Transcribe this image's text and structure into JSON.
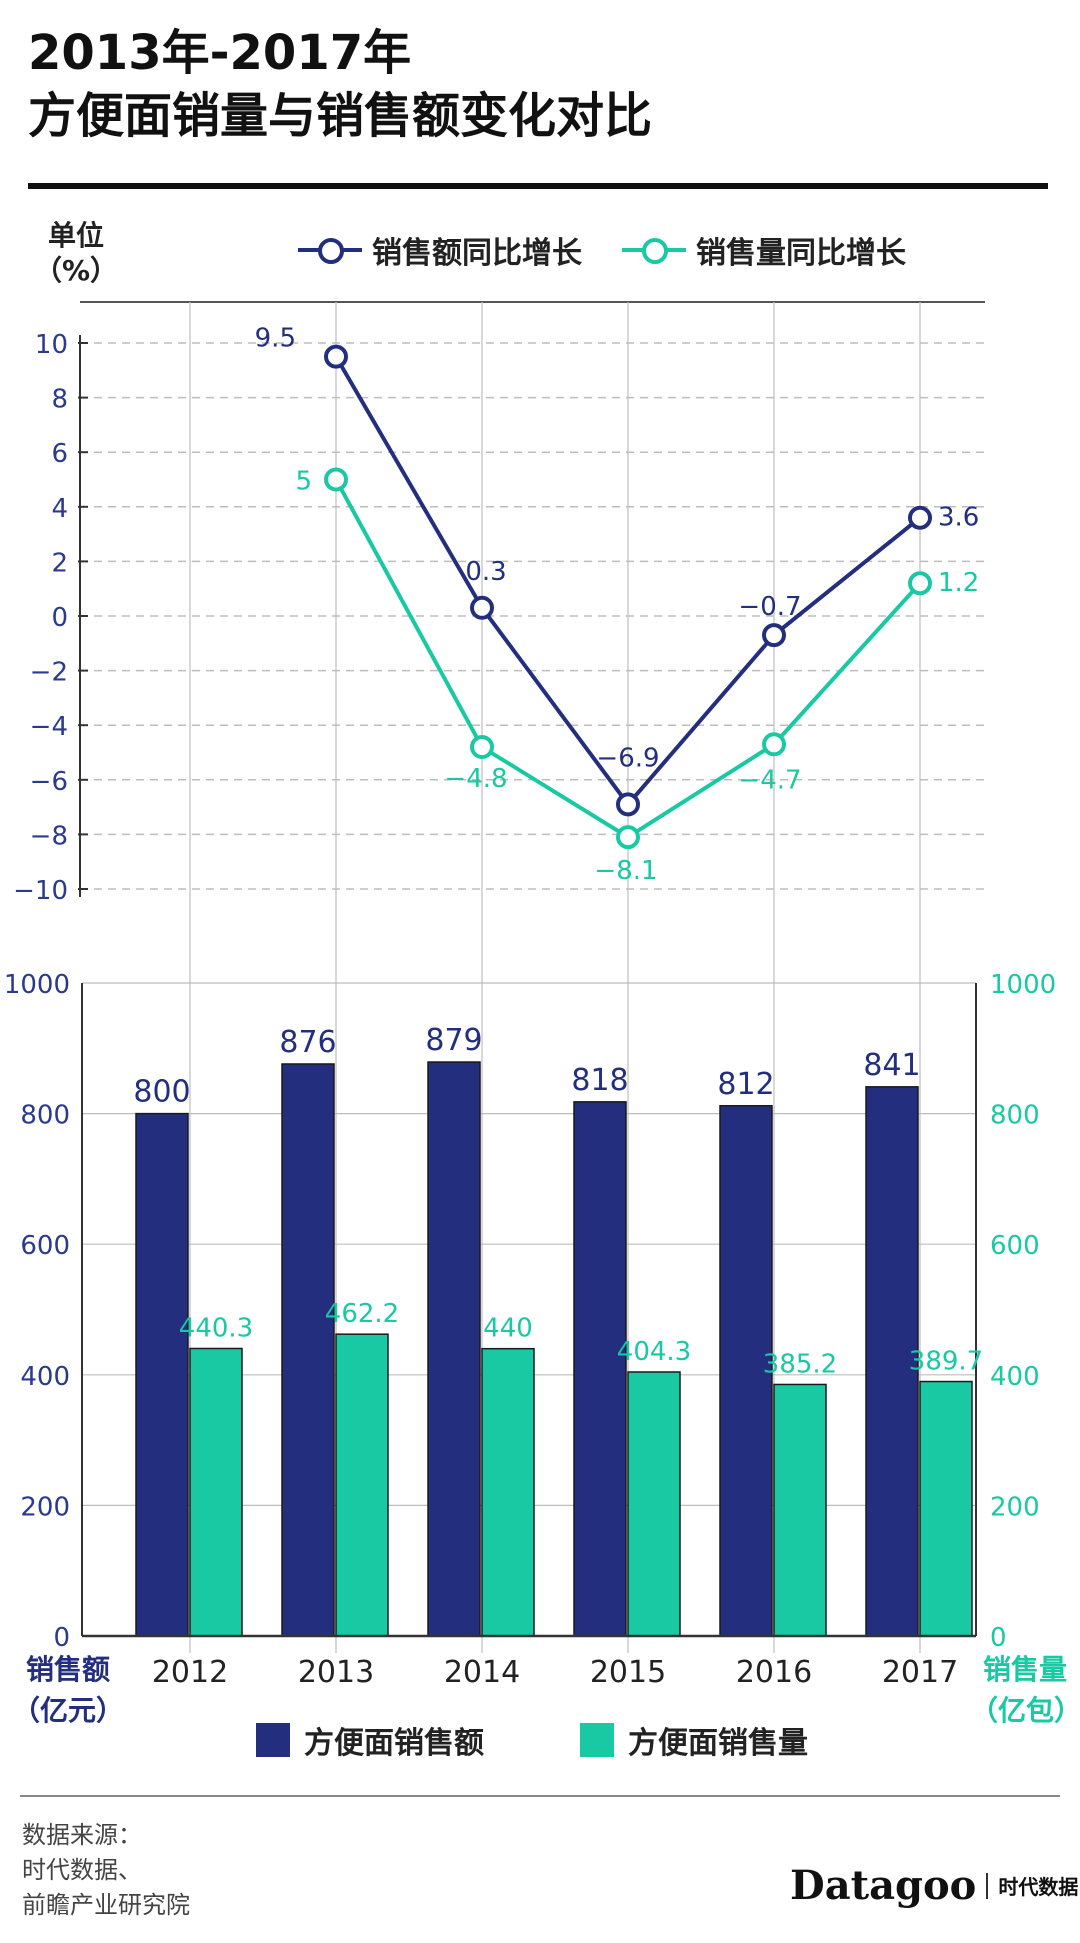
{
  "title": {
    "line1": "2013年-2017年",
    "line2": "方便面销量与销售额变化对比"
  },
  "top_unit": {
    "line1": "单位",
    "line2": "（%）"
  },
  "left_axis_title": {
    "line1": "销售额",
    "line2": "（亿元）"
  },
  "right_axis_title": {
    "line1": "销售量",
    "line2": "（亿包）"
  },
  "colors": {
    "navy": "#232f7e",
    "teal": "#19c9a3",
    "grid": "#bdbdbd"
  },
  "source": {
    "line1": "数据来源：",
    "line2": "时代数据、",
    "line3": "前瞻产业研究院"
  },
  "brand": {
    "name": "Datagoo",
    "cn": "时代数据"
  },
  "chart_data": [
    {
      "type": "line",
      "ylabel": "单位（%）",
      "ylim": [
        -10,
        10
      ],
      "yticks": [
        "10",
        "8",
        "6",
        "4",
        "2",
        "0",
        "−2",
        "−4",
        "−6",
        "−8",
        "−10"
      ],
      "x": [
        "2013",
        "2014",
        "2015",
        "2016",
        "2017"
      ],
      "legend": "top",
      "grid": true,
      "series": [
        {
          "name": "销售额同比增长",
          "values": [
            9.5,
            0.3,
            -6.9,
            -0.7,
            3.6
          ],
          "labels": [
            "9.5",
            "0.3",
            "−6.9",
            "−0.7",
            "3.6"
          ]
        },
        {
          "name": "销售量同比增长",
          "values": [
            5,
            -4.8,
            -8.1,
            -4.7,
            1.2
          ],
          "labels": [
            "5",
            "−4.8",
            "−8.1",
            "−4.7",
            "1.2"
          ]
        }
      ]
    },
    {
      "type": "bar",
      "categories": [
        "2012",
        "2013",
        "2014",
        "2015",
        "2016",
        "2017"
      ],
      "ylim": [
        0,
        1000
      ],
      "yticks": [
        "0",
        "200",
        "400",
        "600",
        "800",
        "1000"
      ],
      "legend": "bottom",
      "grid": true,
      "series": [
        {
          "name": "方便面销售额",
          "axis": "left",
          "values": [
            800,
            876,
            879,
            818,
            812,
            841
          ],
          "labels": [
            "800",
            "876",
            "879",
            "818",
            "812",
            "841"
          ]
        },
        {
          "name": "方便面销售量",
          "axis": "right",
          "values": [
            440.3,
            462.2,
            440,
            404.3,
            385.2,
            389.7
          ],
          "labels": [
            "440.3",
            "462.2",
            "440",
            "404.3",
            "385.2",
            "389.7"
          ]
        }
      ]
    }
  ]
}
